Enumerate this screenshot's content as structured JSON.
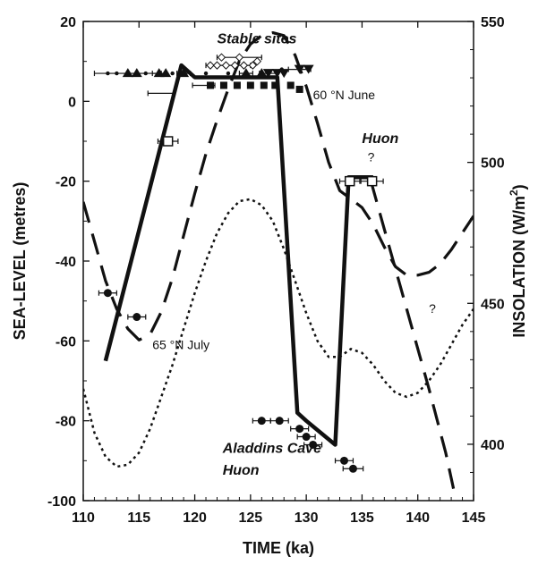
{
  "chart_data": {
    "type": "line",
    "xlabel": "TIME (ka)",
    "ylabel": "SEA-LEVEL (metres)",
    "y2label": "INSOLATION (W/m",
    "y2label_sup": "2",
    "y2label_close": ")",
    "xlim": [
      110,
      145
    ],
    "ylim": [
      -100,
      20
    ],
    "y2lim": [
      380,
      550
    ],
    "x_ticks": [
      110,
      115,
      120,
      125,
      130,
      135,
      140,
      145
    ],
    "y_ticks": [
      20,
      0,
      -20,
      -40,
      -60,
      -80,
      -100
    ],
    "y2_ticks": [
      550,
      500,
      450,
      400
    ],
    "annotations": [
      {
        "id": "stable",
        "text": "Stable sites",
        "x": 122.0,
        "y": 14.5,
        "style": "bold-italic"
      },
      {
        "id": "june",
        "text": "60 °N June",
        "x": 130.6,
        "y": 0.5,
        "style": "normal"
      },
      {
        "id": "huon1",
        "text": "Huon",
        "x": 135.0,
        "y": -10.5,
        "style": "bold-italic"
      },
      {
        "id": "q1",
        "text": "?",
        "x": 135.5,
        "y": -15.0,
        "style": "normal"
      },
      {
        "id": "q2",
        "text": "?",
        "x": 141.0,
        "y": -53.0,
        "style": "normal"
      },
      {
        "id": "july",
        "text": "65 °N July",
        "x": 116.2,
        "y": -62.0,
        "style": "normal"
      },
      {
        "id": "aladdins",
        "text": "Aladdins Cave",
        "x": 122.5,
        "y": -88.0,
        "style": "bold-italic"
      },
      {
        "id": "huon2",
        "text": "Huon",
        "x": 122.5,
        "y": -93.5,
        "style": "bold-italic"
      }
    ],
    "series": [
      {
        "id": "sea_level",
        "style": "solid-thick",
        "axis": "left",
        "x": [
          112.0,
          118.8,
          120.0,
          127.4,
          129.2,
          130.0,
          132.6,
          133.8,
          134.5,
          136.0
        ],
        "y": [
          -65,
          9,
          6,
          6,
          -78,
          -80,
          -86,
          -19,
          -19,
          -19
        ]
      },
      {
        "id": "insolation_60N_june",
        "style": "dashed",
        "axis": "right",
        "x": [
          110,
          111,
          112,
          113,
          114,
          115,
          116,
          117,
          118,
          119,
          120,
          121,
          122,
          123,
          124,
          125,
          126,
          127,
          128,
          129,
          130,
          131,
          132,
          133,
          134,
          135,
          136,
          137,
          138,
          139,
          140,
          141,
          142,
          143,
          144,
          145
        ],
        "y": [
          486,
          472,
          458,
          448,
          441,
          437,
          439,
          447,
          459,
          474,
          489,
          503,
          515,
          526,
          536,
          542,
          545,
          546,
          545,
          538,
          527,
          514,
          500,
          490,
          487,
          484,
          478,
          470,
          463,
          460,
          460,
          461,
          464,
          469,
          475,
          481
        ]
      },
      {
        "id": "insolation_65N_july",
        "style": "dotted",
        "axis": "left",
        "x": [
          110,
          111,
          112,
          113,
          114,
          115,
          116,
          117,
          118,
          119,
          120,
          121,
          122,
          123,
          124,
          125,
          126,
          127,
          128,
          129,
          130,
          131,
          132,
          133,
          134,
          135,
          136,
          137,
          138,
          139,
          140,
          141,
          142,
          143,
          144,
          145
        ],
        "y": [
          -72,
          -83,
          -89,
          -91.5,
          -91,
          -88,
          -82,
          -74,
          -66,
          -57,
          -48,
          -40,
          -33,
          -28,
          -25,
          -24.5,
          -26,
          -30,
          -37,
          -45,
          -53,
          -60,
          -64,
          -64,
          -62,
          -63,
          -66,
          -70,
          -73,
          -74,
          -73,
          -70,
          -66,
          -61,
          -56,
          -52
        ]
      },
      {
        "id": "dashed_tail",
        "style": "dashed",
        "axis": "left",
        "x": [
          135.8,
          137.0,
          139.0,
          141.0,
          142.5,
          143.2
        ],
        "y": [
          -20,
          -32,
          -52,
          -72,
          -88,
          -97
        ]
      }
    ],
    "markers": {
      "filled_circles": [
        {
          "x": 112.2,
          "y": -48,
          "xerr": 0.8
        },
        {
          "x": 114.8,
          "y": -54,
          "xerr": 0.8
        },
        {
          "x": 126.0,
          "y": -80,
          "xerr": 0.8
        },
        {
          "x": 127.6,
          "y": -80,
          "xerr": 0.8
        },
        {
          "x": 129.4,
          "y": -82,
          "xerr": 0.8
        },
        {
          "x": 130.0,
          "y": -84,
          "xerr": 0.8
        },
        {
          "x": 130.6,
          "y": -86,
          "xerr": 0.8
        },
        {
          "x": 133.4,
          "y": -90,
          "xerr": 0.8
        },
        {
          "x": 134.2,
          "y": -92,
          "xerr": 0.9
        }
      ],
      "open_squares": [
        {
          "x": 117.6,
          "y": -10,
          "xerr": 0.9
        },
        {
          "x": 133.9,
          "y": -20,
          "xerr": 0.9
        },
        {
          "x": 135.9,
          "y": -20,
          "xerr": 1.0
        }
      ],
      "triangles_up": [
        {
          "x": 114.0,
          "y": 7,
          "xerr": 3.0
        },
        {
          "x": 114.8,
          "y": 7,
          "xerr": 0
        },
        {
          "x": 116.8,
          "y": 7,
          "xerr": 0.6
        },
        {
          "x": 117.4,
          "y": 7,
          "xerr": 0
        },
        {
          "x": 119.0,
          "y": 7,
          "xerr": 0.6
        },
        {
          "x": 124.6,
          "y": 7,
          "xerr": 0.6
        },
        {
          "x": 126.0,
          "y": 7,
          "xerr": 0
        }
      ],
      "triangles_down": [
        {
          "x": 126.6,
          "y": 7,
          "xerr": 0.8
        },
        {
          "x": 127.4,
          "y": 7,
          "xerr": 0
        },
        {
          "x": 128.0,
          "y": 7,
          "xerr": 0
        },
        {
          "x": 129.4,
          "y": 8,
          "xerr": 1.0
        },
        {
          "x": 130.2,
          "y": 8,
          "xerr": 0
        }
      ],
      "diamonds": [
        {
          "x": 121.4,
          "y": 9,
          "xerr": 0
        },
        {
          "x": 122.0,
          "y": 9,
          "xerr": 0
        },
        {
          "x": 122.8,
          "y": 9,
          "xerr": 0
        },
        {
          "x": 123.6,
          "y": 9,
          "xerr": 0
        },
        {
          "x": 124.4,
          "y": 9,
          "xerr": 0
        },
        {
          "x": 125.2,
          "y": 9,
          "xerr": 0
        },
        {
          "x": 122.4,
          "y": 11,
          "xerr": 0
        },
        {
          "x": 124.0,
          "y": 11,
          "xerr": 0
        },
        {
          "x": 125.6,
          "y": 10,
          "xerr": 0
        }
      ],
      "filled_squares": [
        {
          "x": 121.4,
          "y": 4,
          "xerr": 0
        },
        {
          "x": 122.6,
          "y": 4,
          "xerr": 0
        },
        {
          "x": 123.8,
          "y": 4,
          "xerr": 0
        },
        {
          "x": 125.0,
          "y": 4,
          "xerr": 0
        },
        {
          "x": 126.2,
          "y": 4,
          "xerr": 0
        },
        {
          "x": 127.2,
          "y": 4,
          "xerr": 0
        },
        {
          "x": 128.6,
          "y": 4,
          "xerr": 0
        },
        {
          "x": 129.4,
          "y": 3,
          "xerr": 0
        }
      ],
      "small_dots": [
        {
          "x": 112.2,
          "y": 7,
          "xerr": 0
        },
        {
          "x": 113.0,
          "y": 7,
          "xerr": 0
        },
        {
          "x": 115.6,
          "y": 7,
          "xerr": 0
        },
        {
          "x": 118.0,
          "y": 7,
          "xerr": 0
        },
        {
          "x": 121.0,
          "y": 7,
          "xerr": 0
        },
        {
          "x": 123.0,
          "y": 7,
          "xerr": 0
        },
        {
          "x": 127.8,
          "y": 8,
          "xerr": 0
        }
      ],
      "extra_errorbars": [
        {
          "x": 117.0,
          "y": 2,
          "xerr": 1.2
        },
        {
          "x": 120.8,
          "y": 4,
          "xerr": 1.0
        },
        {
          "x": 124.0,
          "y": 11,
          "xerr": 2.0
        },
        {
          "x": 123.0,
          "y": 9,
          "xerr": 2.0
        }
      ]
    }
  }
}
